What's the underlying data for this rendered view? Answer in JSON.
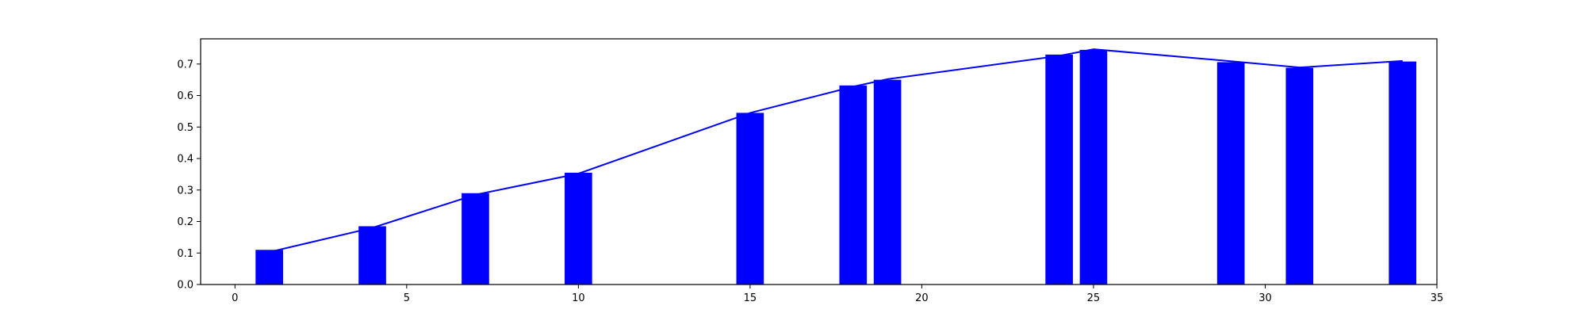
{
  "chart_data": {
    "type": "bar",
    "title": "",
    "xlabel": "",
    "ylabel": "",
    "xlim": [
      -1,
      35
    ],
    "ylim": [
      0,
      0.78
    ],
    "grid": false,
    "legend": "none",
    "colors": {
      "bars": "#0000ff",
      "line": "#0000ff",
      "axes": "#000000",
      "background": "#ffffff"
    },
    "bar_width": 0.8,
    "x": [
      1,
      4,
      7,
      10,
      15,
      18,
      19,
      24,
      25,
      29,
      31,
      34
    ],
    "values": [
      0.11,
      0.185,
      0.29,
      0.355,
      0.545,
      0.632,
      0.65,
      0.73,
      0.745,
      0.706,
      0.688,
      0.708
    ],
    "line_x": [
      1,
      4,
      7,
      10,
      15,
      18,
      19,
      24,
      25,
      29,
      31,
      34
    ],
    "line_y": [
      0.103,
      0.18,
      0.285,
      0.352,
      0.545,
      0.628,
      0.652,
      0.726,
      0.747,
      0.709,
      0.689,
      0.71
    ],
    "xticks": [
      0,
      5,
      10,
      15,
      20,
      25,
      30,
      35
    ],
    "xtick_labels": [
      "0",
      "5",
      "10",
      "15",
      "20",
      "25",
      "30",
      "35"
    ],
    "yticks": [
      0.0,
      0.1,
      0.2,
      0.3,
      0.4,
      0.5,
      0.6,
      0.7
    ],
    "ytick_labels": [
      "0.0",
      "0.1",
      "0.2",
      "0.3",
      "0.4",
      "0.5",
      "0.6",
      "0.7"
    ]
  }
}
